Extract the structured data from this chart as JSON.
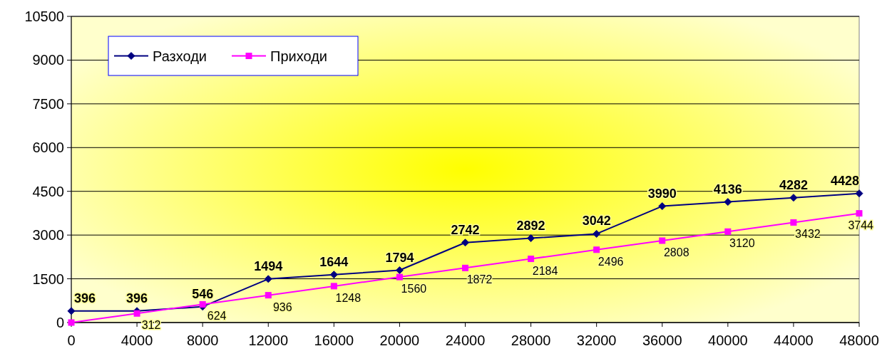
{
  "chart_data": {
    "type": "line",
    "x": [
      0,
      4000,
      8000,
      12000,
      16000,
      20000,
      24000,
      28000,
      32000,
      36000,
      40000,
      44000,
      48000
    ],
    "series": [
      {
        "name": "Разходи",
        "color": "#000080",
        "marker": "diamond",
        "values": [
          396,
          396,
          546,
          1494,
          1644,
          1794,
          2742,
          2892,
          3042,
          3990,
          4136,
          4282,
          4428
        ],
        "value_labels": [
          "396",
          "396",
          "546",
          "1494",
          "1644",
          "1794",
          "2742",
          "2892",
          "3042",
          "3990",
          "4136",
          "4282",
          "4428"
        ]
      },
      {
        "name": "Приходи",
        "color": "#ff00ff",
        "marker": "square",
        "values": [
          0,
          312,
          624,
          936,
          1248,
          1560,
          1872,
          2184,
          2496,
          2808,
          3120,
          3432,
          3744
        ],
        "value_labels": [
          null,
          "312",
          "624",
          "936",
          "1248",
          "1560",
          "1872",
          "2184",
          "2496",
          "2808",
          "3120",
          "3432",
          "3744"
        ]
      }
    ],
    "xlim": [
      0,
      48000
    ],
    "xticks": [
      0,
      4000,
      8000,
      12000,
      16000,
      20000,
      24000,
      28000,
      32000,
      36000,
      40000,
      44000,
      48000
    ],
    "ylim": [
      0,
      10500
    ],
    "yticks": [
      0,
      1500,
      3000,
      4500,
      6000,
      7500,
      9000,
      10500
    ],
    "grid": "y",
    "legend": "top left"
  }
}
